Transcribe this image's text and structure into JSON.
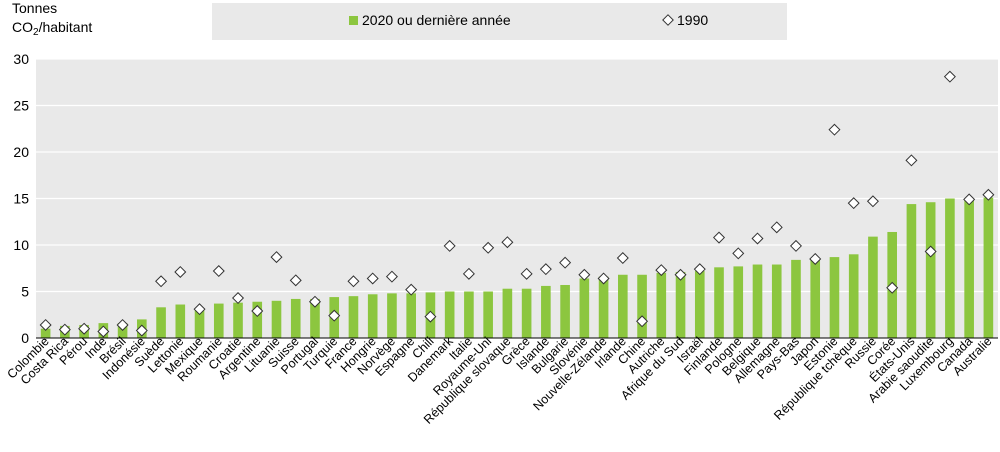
{
  "chart_data": {
    "type": "bar",
    "unit_label_line1": "Tonnes",
    "unit_label_line2_main": "CO",
    "unit_label_line2_sub": "2",
    "unit_label_line2_rest": "/habitant",
    "ylim": [
      0,
      30
    ],
    "yticks": [
      0,
      5,
      10,
      15,
      20,
      25,
      30
    ],
    "grid": true,
    "legend_placement": "top",
    "colors": {
      "bar": "#8cc63f",
      "marker_fill": "#ffffff",
      "marker_stroke": "#333333",
      "grid": "#ffffff",
      "plot_bg": "#e9e9e9",
      "legend_bg": "#e9e9e9"
    },
    "categories": [
      "Colombie",
      "Costa Rica",
      "Pérou",
      "Inde",
      "Brésil",
      "Indonésie",
      "Suède",
      "Lettonie",
      "Mexique",
      "Roumanie",
      "Croatie",
      "Argentine",
      "Lituanie",
      "Suisse",
      "Portugal",
      "Turquie",
      "France",
      "Hongrie",
      "Norvège",
      "Espagne",
      "Chili",
      "Danemark",
      "Italie",
      "Royaume-Uni",
      "République slovaque",
      "Grèce",
      "Islande",
      "Bulgarie",
      "Slovénie",
      "Nouvelle-Zélande",
      "Irlande",
      "Chine",
      "Autriche",
      "Afrique du Sud",
      "Israël",
      "Finlande",
      "Pologne",
      "Belgique",
      "Allemagne",
      "Pays-Bas",
      "Japon",
      "Estonie",
      "République tchèque",
      "Russie",
      "Corée",
      "États-Unis",
      "Arabie saoudite",
      "Luxembourg",
      "Canada",
      "Australie"
    ],
    "series": [
      {
        "name": "2020 ou dernière année",
        "kind": "bar",
        "values": [
          1.0,
          1.3,
          1.4,
          1.6,
          1.6,
          2.0,
          3.3,
          3.6,
          3.0,
          3.7,
          3.8,
          3.9,
          4.0,
          4.2,
          4.2,
          4.4,
          4.5,
          4.7,
          4.8,
          4.8,
          4.9,
          5.0,
          5.0,
          5.0,
          5.3,
          5.3,
          5.6,
          5.7,
          6.4,
          6.6,
          6.8,
          6.8,
          7.0,
          7.1,
          7.2,
          7.6,
          7.7,
          7.9,
          7.9,
          8.4,
          8.6,
          8.7,
          9.0,
          10.9,
          11.4,
          14.4,
          14.6,
          15.0,
          14.9,
          15.1
        ]
      },
      {
        "name": "1990",
        "kind": "marker",
        "values": [
          1.4,
          0.9,
          1.0,
          0.7,
          1.4,
          0.8,
          6.1,
          7.1,
          3.1,
          7.2,
          4.3,
          2.9,
          8.7,
          6.2,
          3.9,
          2.4,
          6.1,
          6.4,
          6.6,
          5.2,
          2.3,
          9.9,
          6.9,
          9.7,
          10.3,
          6.9,
          7.4,
          8.1,
          6.8,
          6.4,
          8.6,
          1.8,
          7.3,
          6.8,
          7.4,
          10.8,
          9.1,
          10.7,
          11.9,
          9.9,
          8.5,
          22.4,
          14.5,
          14.7,
          5.4,
          19.1,
          9.3,
          28.1,
          14.9,
          15.4
        ]
      }
    ]
  }
}
